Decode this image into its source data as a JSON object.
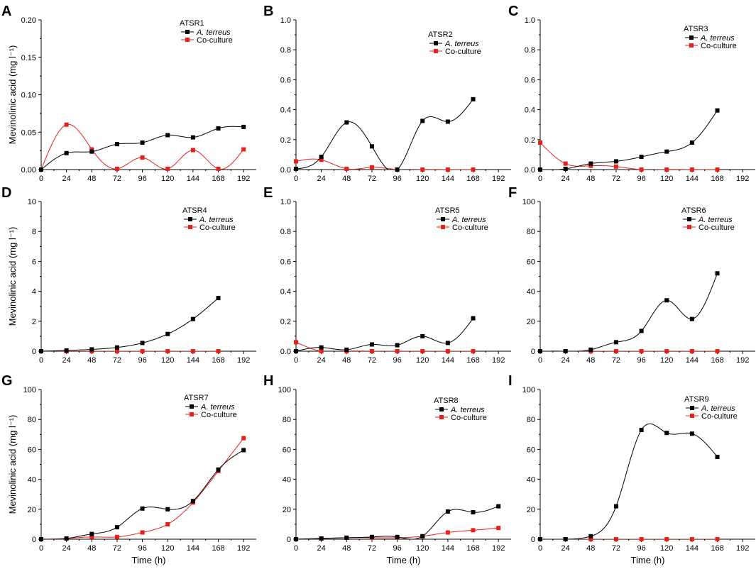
{
  "figure": {
    "ylabel": "Mevinolinic acid (mg l⁻¹)",
    "xlabel": "Time (h)"
  },
  "series_styles": [
    {
      "name": "A. terreus",
      "color": "#000000",
      "italic": true
    },
    {
      "name": "Co-culture",
      "color": "#e8201c",
      "italic": false
    }
  ],
  "chart_data": [
    {
      "panel": "A",
      "type": "line",
      "title": "ATSR1",
      "xlabel": "",
      "ylabel": "Mevinolinic acid (mg l⁻¹)",
      "xlim": [
        0,
        204
      ],
      "xticks": [
        0,
        24,
        48,
        72,
        96,
        120,
        144,
        168,
        192
      ],
      "ylim": [
        0,
        0.2
      ],
      "yticks": [
        0.0,
        0.05,
        0.1,
        0.15,
        0.2
      ],
      "ytick_decimals": 2,
      "legend": [
        "A. terreus",
        "Co-culture"
      ],
      "series": [
        {
          "name": "A. terreus",
          "x": [
            0,
            24,
            48,
            72,
            96,
            120,
            144,
            168,
            192
          ],
          "values": [
            0.0,
            0.022,
            0.024,
            0.034,
            0.036,
            0.046,
            0.043,
            0.055,
            0.057
          ]
        },
        {
          "name": "Co-culture",
          "x": [
            0,
            24,
            48,
            72,
            96,
            120,
            144,
            168,
            192
          ],
          "values": [
            0.0,
            0.06,
            0.027,
            0.001,
            0.016,
            0.001,
            0.026,
            0.001,
            0.027
          ]
        }
      ]
    },
    {
      "panel": "B",
      "type": "line",
      "title": "ATSR2",
      "xlabel": "",
      "ylabel": "",
      "xlim": [
        0,
        204
      ],
      "xticks": [
        0,
        24,
        48,
        72,
        96,
        120,
        144,
        168,
        192
      ],
      "ylim": [
        0,
        1.0
      ],
      "yticks": [
        0.0,
        0.2,
        0.4,
        0.6,
        0.8,
        1.0
      ],
      "ytick_decimals": 1,
      "legend": [
        "A. terreus",
        "Co-culture"
      ],
      "series": [
        {
          "name": "A. terreus",
          "x": [
            0,
            24,
            48,
            72,
            96,
            120,
            144,
            168
          ],
          "values": [
            0.005,
            0.085,
            0.315,
            0.155,
            0.0,
            0.325,
            0.32,
            0.47
          ]
        },
        {
          "name": "Co-culture",
          "x": [
            0,
            24,
            48,
            72,
            96,
            120,
            144,
            168
          ],
          "values": [
            0.055,
            0.065,
            0.005,
            0.015,
            0.0,
            0.0,
            0.0,
            0.0
          ]
        }
      ]
    },
    {
      "panel": "C",
      "type": "line",
      "title": "ATSR3",
      "xlabel": "",
      "ylabel": "",
      "xlim": [
        0,
        204
      ],
      "xticks": [
        0,
        24,
        48,
        72,
        96,
        120,
        144,
        168,
        192
      ],
      "ylim": [
        0,
        1.0
      ],
      "yticks": [
        0.0,
        0.2,
        0.4,
        0.6,
        0.8,
        1.0
      ],
      "ytick_decimals": 1,
      "legend": [
        "A. terreus",
        "Co-culture"
      ],
      "series": [
        {
          "name": "A. terreus",
          "x": [
            0,
            24,
            48,
            72,
            96,
            120,
            144,
            168
          ],
          "values": [
            0.0,
            0.005,
            0.04,
            0.055,
            0.085,
            0.12,
            0.18,
            0.395
          ]
        },
        {
          "name": "Co-culture",
          "x": [
            0,
            24,
            48,
            72,
            96,
            120,
            144,
            168
          ],
          "values": [
            0.18,
            0.04,
            0.025,
            0.02,
            0.0,
            0.0,
            0.0,
            0.0
          ]
        }
      ]
    },
    {
      "panel": "D",
      "type": "line",
      "title": "ATSR4",
      "xlabel": "",
      "ylabel": "Mevinolinic acid (mg l⁻¹)",
      "xlim": [
        0,
        204
      ],
      "xticks": [
        0,
        24,
        48,
        72,
        96,
        120,
        144,
        168,
        192
      ],
      "ylim": [
        0,
        10
      ],
      "yticks": [
        0,
        2,
        4,
        6,
        8,
        10
      ],
      "ytick_decimals": 0,
      "legend": [
        "A. terreus",
        "Co-culture"
      ],
      "series": [
        {
          "name": "A. terreus",
          "x": [
            0,
            24,
            48,
            72,
            96,
            120,
            144,
            168
          ],
          "values": [
            0.0,
            0.05,
            0.12,
            0.25,
            0.55,
            1.15,
            2.15,
            3.55
          ]
        },
        {
          "name": "Co-culture",
          "x": [
            0,
            24,
            48,
            72,
            96,
            120,
            144,
            168
          ],
          "values": [
            0.0,
            0.0,
            0.0,
            0.0,
            0.0,
            0.0,
            0.0,
            0.0
          ]
        }
      ]
    },
    {
      "panel": "E",
      "type": "line",
      "title": "ATSR5",
      "xlabel": "",
      "ylabel": "",
      "xlim": [
        0,
        204
      ],
      "xticks": [
        0,
        24,
        48,
        72,
        96,
        120,
        144,
        168,
        192
      ],
      "ylim": [
        0,
        1.0
      ],
      "yticks": [
        0.0,
        0.2,
        0.4,
        0.6,
        0.8,
        1.0
      ],
      "ytick_decimals": 1,
      "legend": [
        "A. terreus",
        "Co-culture"
      ],
      "series": [
        {
          "name": "A. terreus",
          "x": [
            0,
            24,
            48,
            72,
            96,
            120,
            144,
            168
          ],
          "values": [
            0.0,
            0.025,
            0.01,
            0.045,
            0.04,
            0.1,
            0.055,
            0.22
          ]
        },
        {
          "name": "Co-culture",
          "x": [
            0,
            24,
            48,
            72,
            96,
            120,
            144,
            168
          ],
          "values": [
            0.06,
            0.0,
            0.0,
            0.0,
            0.0,
            0.0,
            0.0,
            0.0
          ]
        }
      ]
    },
    {
      "panel": "F",
      "type": "line",
      "title": "ATSR6",
      "xlabel": "",
      "ylabel": "",
      "xlim": [
        0,
        204
      ],
      "xticks": [
        0,
        24,
        48,
        72,
        96,
        120,
        144,
        168,
        192
      ],
      "ylim": [
        0,
        100
      ],
      "yticks": [
        0,
        20,
        40,
        60,
        80,
        100
      ],
      "ytick_decimals": 0,
      "legend": [
        "A. terreus",
        "Co-culture"
      ],
      "series": [
        {
          "name": "A. terreus",
          "x": [
            0,
            24,
            48,
            72,
            96,
            120,
            144,
            168
          ],
          "values": [
            0.0,
            0.0,
            1.0,
            6.0,
            13.5,
            34.0,
            21.5,
            52.0
          ]
        },
        {
          "name": "Co-culture",
          "x": [
            0,
            24,
            48,
            72,
            96,
            120,
            144,
            168
          ],
          "values": [
            0.0,
            0.0,
            0.0,
            0.0,
            0.0,
            0.0,
            0.0,
            0.0
          ]
        }
      ]
    },
    {
      "panel": "G",
      "type": "line",
      "title": "ATSR7",
      "xlabel": "Time (h)",
      "ylabel": "Mevinolinic acid (mg l⁻¹)",
      "xlim": [
        0,
        204
      ],
      "xticks": [
        0,
        24,
        48,
        72,
        96,
        120,
        144,
        168,
        192
      ],
      "ylim": [
        0,
        100
      ],
      "yticks": [
        0,
        20,
        40,
        60,
        80,
        100
      ],
      "ytick_decimals": 0,
      "legend": [
        "A. terreus",
        "Co-culture"
      ],
      "series": [
        {
          "name": "A. terreus",
          "x": [
            0,
            24,
            48,
            72,
            96,
            120,
            144,
            168,
            192
          ],
          "values": [
            0.0,
            0.5,
            3.5,
            8.0,
            20.5,
            20.0,
            25.5,
            46.5,
            59.5
          ]
        },
        {
          "name": "Co-culture",
          "x": [
            0,
            24,
            48,
            72,
            96,
            120,
            144,
            168,
            192
          ],
          "values": [
            0.0,
            0.5,
            1.5,
            1.5,
            4.5,
            10.0,
            24.5,
            45.5,
            67.5
          ]
        }
      ]
    },
    {
      "panel": "H",
      "type": "line",
      "title": "ATSR8",
      "xlabel": "Time (h)",
      "ylabel": "",
      "xlim": [
        0,
        204
      ],
      "xticks": [
        0,
        24,
        48,
        72,
        96,
        120,
        144,
        168,
        192
      ],
      "ylim": [
        0,
        100
      ],
      "yticks": [
        0,
        20,
        40,
        60,
        80,
        100
      ],
      "ytick_decimals": 0,
      "legend": [
        "A. terreus",
        "Co-culture"
      ],
      "series": [
        {
          "name": "A. terreus",
          "x": [
            0,
            24,
            48,
            72,
            96,
            120,
            144,
            168,
            192
          ],
          "values": [
            0.0,
            0.5,
            1.0,
            1.5,
            1.5,
            2.0,
            18.5,
            18.0,
            22.0
          ]
        },
        {
          "name": "Co-culture",
          "x": [
            0,
            24,
            48,
            72,
            96,
            120,
            144,
            168,
            192
          ],
          "values": [
            0.0,
            0.5,
            1.0,
            1.0,
            1.0,
            2.0,
            4.5,
            6.0,
            7.5
          ]
        }
      ]
    },
    {
      "panel": "I",
      "type": "line",
      "title": "ATSR9",
      "xlabel": "Time (h)",
      "ylabel": "",
      "xlim": [
        0,
        204
      ],
      "xticks": [
        0,
        24,
        48,
        72,
        96,
        120,
        144,
        168,
        192
      ],
      "ylim": [
        0,
        100
      ],
      "yticks": [
        0,
        20,
        40,
        60,
        80,
        100
      ],
      "ytick_decimals": 0,
      "legend": [
        "A. terreus",
        "Co-culture"
      ],
      "series": [
        {
          "name": "A. terreus",
          "x": [
            0,
            24,
            48,
            72,
            96,
            120,
            144,
            168
          ],
          "values": [
            0.0,
            0.0,
            2.0,
            22.0,
            73.0,
            71.0,
            70.5,
            55.0
          ]
        },
        {
          "name": "Co-culture",
          "x": [
            0,
            24,
            48,
            72,
            96,
            120,
            144,
            168
          ],
          "values": [
            0.0,
            0.0,
            0.0,
            0.0,
            0.0,
            0.0,
            0.0,
            0.0
          ]
        }
      ]
    }
  ]
}
